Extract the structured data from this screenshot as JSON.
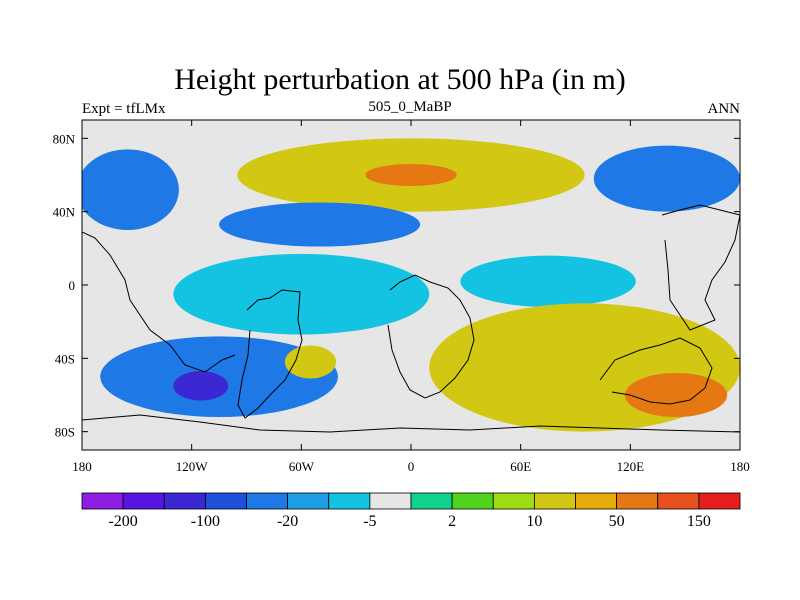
{
  "page": {
    "title": "Height perturbation at 500 hPa (in m)",
    "left_string": "Expt = tfLMx",
    "center_string": "505_0_MaBP",
    "right_string": "ANN"
  },
  "chart_data": {
    "type": "heatmap",
    "title": "Height perturbation at 500 hPa (in m)",
    "xlabel": "",
    "ylabel": "",
    "xlim": [
      -180,
      180
    ],
    "ylim": [
      -90,
      90
    ],
    "x_ticks": [
      {
        "value": -180,
        "label": "180"
      },
      {
        "value": -120,
        "label": "120W"
      },
      {
        "value": -60,
        "label": "60W"
      },
      {
        "value": 0,
        "label": "0"
      },
      {
        "value": 60,
        "label": "60E"
      },
      {
        "value": 120,
        "label": "120E"
      },
      {
        "value": 180,
        "label": "180"
      }
    ],
    "y_ticks": [
      {
        "value": 80,
        "label": "80N"
      },
      {
        "value": 40,
        "label": "40N"
      },
      {
        "value": 0,
        "label": "0"
      },
      {
        "value": -40,
        "label": "40S"
      },
      {
        "value": -80,
        "label": "80S"
      }
    ],
    "colorbar": {
      "colors": [
        "#8c1ee6",
        "#5a14e1",
        "#3c28d2",
        "#1e50dc",
        "#1e78e6",
        "#1e9ee6",
        "#14c3e1",
        "#e6e6e6",
        "#0fd28c",
        "#50d21e",
        "#a0dc14",
        "#d2c814",
        "#e6aa0a",
        "#e67814",
        "#e6501e",
        "#e61e1e"
      ],
      "labels": [
        {
          "index": 1,
          "label": "-200"
        },
        {
          "index": 3,
          "label": "-100"
        },
        {
          "index": 5,
          "label": "-20"
        },
        {
          "index": 7,
          "label": "-5"
        },
        {
          "index": 9,
          "label": "2"
        },
        {
          "index": 11,
          "label": "10"
        },
        {
          "index": 13,
          "label": "50"
        },
        {
          "index": 15,
          "label": "150"
        }
      ]
    },
    "regions": [
      {
        "name": "arctic-negative",
        "level": 4,
        "lon": -155,
        "lat": 52,
        "rx": 28,
        "ry": 22
      },
      {
        "name": "north-atlantic-positive",
        "level": 11,
        "lon": 0,
        "lat": 60,
        "rx": 95,
        "ry": 20
      },
      {
        "name": "north-atlantic-max",
        "level": 13,
        "lon": 0,
        "lat": 60,
        "rx": 25,
        "ry": 6
      },
      {
        "name": "siberia-negative",
        "level": 4,
        "lon": 140,
        "lat": 58,
        "rx": 40,
        "ry": 18
      },
      {
        "name": "midlat-negative",
        "level": 4,
        "lon": -50,
        "lat": 33,
        "rx": 55,
        "ry": 12
      },
      {
        "name": "tropical-negative",
        "level": 6,
        "lon": -60,
        "lat": -5,
        "rx": 70,
        "ry": 22
      },
      {
        "name": "indian-ocean-negative",
        "level": 6,
        "lon": 75,
        "lat": 2,
        "rx": 48,
        "ry": 14
      },
      {
        "name": "southern-negative",
        "level": 4,
        "lon": -105,
        "lat": -50,
        "rx": 65,
        "ry": 22
      },
      {
        "name": "southern-min",
        "level": 2,
        "lon": -115,
        "lat": -55,
        "rx": 15,
        "ry": 8
      },
      {
        "name": "south-atlantic-positive",
        "level": 11,
        "lon": -55,
        "lat": -42,
        "rx": 14,
        "ry": 9
      },
      {
        "name": "south-indian-positive",
        "level": 11,
        "lon": 95,
        "lat": -45,
        "rx": 85,
        "ry": 35
      },
      {
        "name": "south-indian-max",
        "level": 13,
        "lon": 145,
        "lat": -60,
        "rx": 28,
        "ry": 12
      }
    ]
  }
}
